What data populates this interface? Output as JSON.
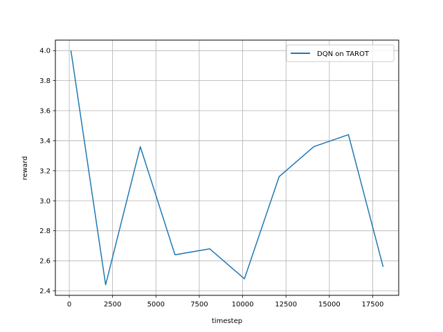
{
  "chart_data": {
    "type": "line",
    "title": "",
    "xlabel": "timestep",
    "ylabel": "reward",
    "xlim": [
      -800,
      19000
    ],
    "ylim": [
      2.37,
      4.07
    ],
    "xticks": [
      0,
      2500,
      5000,
      7500,
      10000,
      12500,
      15000,
      17500
    ],
    "yticks": [
      2.4,
      2.6,
      2.8,
      3.0,
      3.2,
      3.4,
      3.6,
      3.8,
      4.0
    ],
    "xtick_labels": [
      "0",
      "2500",
      "5000",
      "7500",
      "10000",
      "12500",
      "15000",
      "17500"
    ],
    "ytick_labels": [
      "2.4",
      "2.6",
      "2.8",
      "3.0",
      "3.2",
      "3.4",
      "3.6",
      "3.8",
      "4.0"
    ],
    "grid": true,
    "legend_position": "top-right",
    "series": [
      {
        "name": "DQN on TAROT",
        "color": "#1f77b4",
        "x": [
          100,
          2100,
          4100,
          6100,
          8100,
          10100,
          12100,
          14100,
          16100,
          18100
        ],
        "y": [
          4.0,
          2.44,
          3.36,
          2.64,
          2.68,
          2.48,
          3.16,
          3.36,
          3.44,
          2.56
        ]
      }
    ]
  }
}
